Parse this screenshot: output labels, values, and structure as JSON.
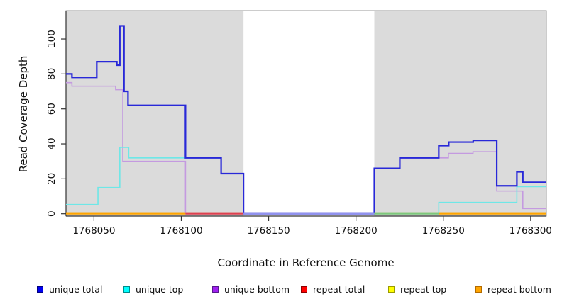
{
  "figure": {
    "background": "#ffffff",
    "region_fill": "#dbdbdb",
    "box_color": "#999999",
    "axis_color": "#333333",
    "tick_label_color": "#111111"
  },
  "chart_data": {
    "type": "line",
    "step": true,
    "title": "",
    "xlabel": "Coordinate in Reference Genome",
    "ylabel": "Read Coverage Depth",
    "xlim": [
      1768034,
      1768309
    ],
    "ylim": [
      0,
      110
    ],
    "x_ticks": [
      1768050,
      1768100,
      1768150,
      1768200,
      1768250,
      1768300
    ],
    "y_ticks": [
      0,
      20,
      40,
      60,
      80,
      100
    ],
    "grid": false,
    "legend_position": "bottom",
    "shaded_regions": [
      {
        "name": "left-shaded-region",
        "x0": 1768034,
        "x1": 1768135.6,
        "color": "#dbdbdb"
      },
      {
        "name": "right-shaded-region",
        "x0": 1768210.5,
        "x1": 1768309,
        "color": "#dbdbdb"
      }
    ],
    "series": [
      {
        "name": "unique total",
        "color": "#2828d8",
        "width": 2.2,
        "points": [
          [
            1768034,
            80
          ],
          [
            1768037.4,
            78
          ],
          [
            1768051.6,
            87
          ],
          [
            1768063.1,
            85
          ],
          [
            1768064.8,
            107.5
          ],
          [
            1768067.2,
            70
          ],
          [
            1768069.5,
            62
          ],
          [
            1768102.4,
            32
          ],
          [
            1768122.8,
            23
          ],
          [
            1768135.6,
            0
          ],
          [
            1768210.5,
            26
          ],
          [
            1768225.1,
            32
          ],
          [
            1768247.4,
            39
          ],
          [
            1768253.1,
            41
          ],
          [
            1768267.1,
            42
          ],
          [
            1768280.6,
            16
          ],
          [
            1768292.1,
            24
          ],
          [
            1768295.5,
            18
          ],
          [
            1768309,
            18
          ]
        ]
      },
      {
        "name": "unique top",
        "color": "#6ee7e7",
        "width": 1.6,
        "points": [
          [
            1768034,
            5.3
          ],
          [
            1768052.3,
            15
          ],
          [
            1768064.8,
            38
          ],
          [
            1768069.9,
            32
          ],
          [
            1768122.8,
            23
          ],
          [
            1768135.6,
            0
          ],
          [
            1768247.4,
            6.5
          ],
          [
            1768292.1,
            15.5
          ],
          [
            1768309,
            15.5
          ]
        ]
      },
      {
        "name": "unique bottom",
        "color": "#c49ae0",
        "width": 1.6,
        "points": [
          [
            1768034,
            75
          ],
          [
            1768037.4,
            73
          ],
          [
            1768062.4,
            71
          ],
          [
            1768066.5,
            30
          ],
          [
            1768102.4,
            0
          ],
          [
            1768210.5,
            26
          ],
          [
            1768225.1,
            32
          ],
          [
            1768252.9,
            34.5
          ],
          [
            1768267,
            35.5
          ],
          [
            1768280.6,
            13
          ],
          [
            1768295.5,
            3
          ],
          [
            1768309,
            3
          ]
        ]
      },
      {
        "name": "repeat total",
        "color": "#e03030",
        "width": 1.6,
        "points": [
          [
            1768034,
            0
          ],
          [
            1768309,
            0
          ]
        ]
      },
      {
        "name": "repeat top",
        "color": "#ffff00",
        "width": 1.6,
        "points": [
          [
            1768034,
            0
          ],
          [
            1768309,
            0
          ]
        ]
      },
      {
        "name": "repeat bottom",
        "color": "#ffa500",
        "width": 1.6,
        "points": [
          [
            1768034,
            0
          ],
          [
            1768309,
            0
          ]
        ]
      }
    ],
    "baseline_overlay_segments": [
      {
        "x0": 1768034,
        "x1": 1768102.4,
        "color": "#ffa500"
      },
      {
        "x0": 1768102.4,
        "x1": 1768135.6,
        "color": "#de4050"
      },
      {
        "x0": 1768135.6,
        "x1": 1768210.5,
        "color": "#9193f0"
      },
      {
        "x0": 1768210.5,
        "x1": 1768247.4,
        "color": "#7cc87c"
      },
      {
        "x0": 1768247.4,
        "x1": 1768309,
        "color": "#ffa500"
      }
    ],
    "legend": [
      {
        "label": "unique total",
        "fill": "#0000f0",
        "border": "#000080"
      },
      {
        "label": "unique top",
        "fill": "#00ffff",
        "border": "#008b8b"
      },
      {
        "label": "unique bottom",
        "fill": "#a020f0",
        "border": "#551a8b"
      },
      {
        "label": "repeat total",
        "fill": "#ff0000",
        "border": "#8b0000"
      },
      {
        "label": "repeat top",
        "fill": "#ffff00",
        "border": "#9a9a00"
      },
      {
        "label": "repeat bottom",
        "fill": "#ffa500",
        "border": "#b36b00"
      }
    ]
  }
}
